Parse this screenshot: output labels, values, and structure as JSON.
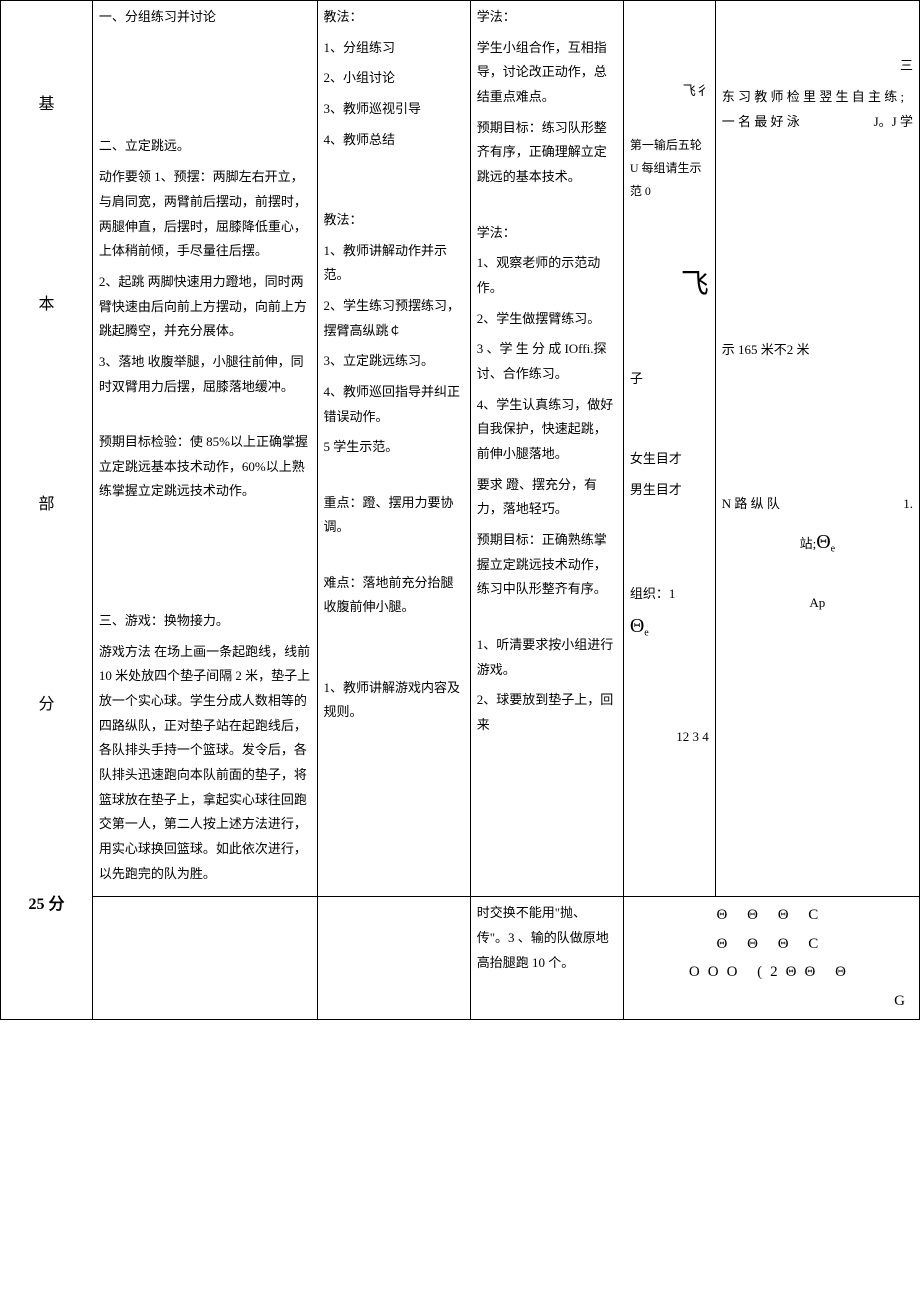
{
  "section": {
    "chars": [
      "基",
      "本",
      "部",
      "分"
    ],
    "time": "25 分"
  },
  "content": {
    "p1": "一、分组练习并讨论",
    "p2": "二、立定跳远。",
    "p3": "动作要领 1、预摆：两脚左右开立，与肩同宽，两臂前后摆动，前摆时，两腿伸直，后摆时，屈膝降低重心，上体稍前倾，手尽量往后摆。",
    "p4": "2、起跳 两脚快速用力蹬地，同时两臂快速由后向前上方摆动，向前上方跳起腾空，并充分展体。",
    "p5": "3、落地 收腹举腿，小腿往前伸，同时双臂用力后摆，屈膝落地缓冲。",
    "p6": "预期目标检验：使 85%以上正确掌握立定跳远基本技术动作，60%以上熟练掌握立定跳远技术动作。",
    "p7": "三、游戏：换物接力。",
    "p8": "游戏方法 在场上画一条起跑线，线前 10 米处放四个垫子间隔 2 米，垫子上放一个实心球。学生分成人数相等的四路纵队，正对垫子站在起跑线后，各队排头手持一个篮球。发令后，各队排头迅速跑向本队前面的垫子，将篮球放在垫子上，拿起实心球往回跑交第一人，第二人按上述方法进行，用实心球换回篮球。如此依次进行，以先跑完的队为胜。"
  },
  "teach": {
    "t1_h": "教法：",
    "t1_1": "1、分组练习",
    "t1_2": "2、小组讨论",
    "t1_3": "3、教师巡视引导",
    "t1_4": "4、教师总结",
    "t2_h": "教法：",
    "t2_1": "1、教师讲解动作并示范。",
    "t2_2": "2、学生练习预摆练习，摆臂高纵跳￠",
    "t2_3": "3、立定跳远练习。",
    "t2_4": "4、教师巡回指导并纠正错误动作。",
    "t2_5": "5 学生示范。",
    "t2_key_h": "重点：蹬、摆用力要协调。",
    "t2_diff_h": "难点：落地前充分抬腿收腹前伸小腿。",
    "t3_1": "1、教师讲解游戏内容及规则。"
  },
  "learn": {
    "l1_h": "学法：",
    "l1_1": "学生小组合作，互相指导，讨论改正动作，总结重点难点。",
    "l1_2": "预期目标：练习队形整齐有序，正确理解立定跳远的基本技术。",
    "l2_h": "学法：",
    "l2_1": "1、观察老师的示范动作。",
    "l2_2": "2、学生做摆臂练习。",
    "l2_3": "3 、学 生 分 成 IOffi.探讨、合作练习。",
    "l2_4": "4、学生认真练习，做好自我保护，快速起跳，前伸小腿落地。",
    "l2_req": "要求 蹬、摆充分，有力，落地轻巧。",
    "l2_exp": "预期目标：正确熟练掌握立定跳远技术动作，练习中队形整齐有序。",
    "l3_1": "1、听清要求按小组进行游戏。",
    "l3_2": "2、球要放到垫子上，回来",
    "l3_3": "时交换不能用\"抛、传\"。3 、输的队做原地高抬腿跑 10 个。"
  },
  "org": {
    "fei1": "飞彳",
    "o1": "第一输后五轮 U 每组请生示范 0",
    "fei2": "飞",
    "o2": "子",
    "o3": "女生目才",
    "o4": "男生目才",
    "o5_a": "组织：1",
    "o5_b": "Θ",
    "o5_sub": "e",
    "o6": "12  3  4"
  },
  "note": {
    "n0": "三",
    "n1": "东 习 教 师 检 里 翌 生 自 主 练 ; 一 名 最 好 泳",
    "n1r": "J。J 学",
    "n2": "示 165 米不2 米",
    "n3a": "N  路  纵  队",
    "n3b": "站;",
    "n3c": "Θ",
    "n3sub": "e",
    "n4": "Ap",
    "n5": "1.",
    "row1": "Θ   Θ   Θ   C",
    "row2": "Θ   Θ   Θ   C",
    "row3": "OOO (2ΘΘ   Θ",
    "row4": "G"
  }
}
